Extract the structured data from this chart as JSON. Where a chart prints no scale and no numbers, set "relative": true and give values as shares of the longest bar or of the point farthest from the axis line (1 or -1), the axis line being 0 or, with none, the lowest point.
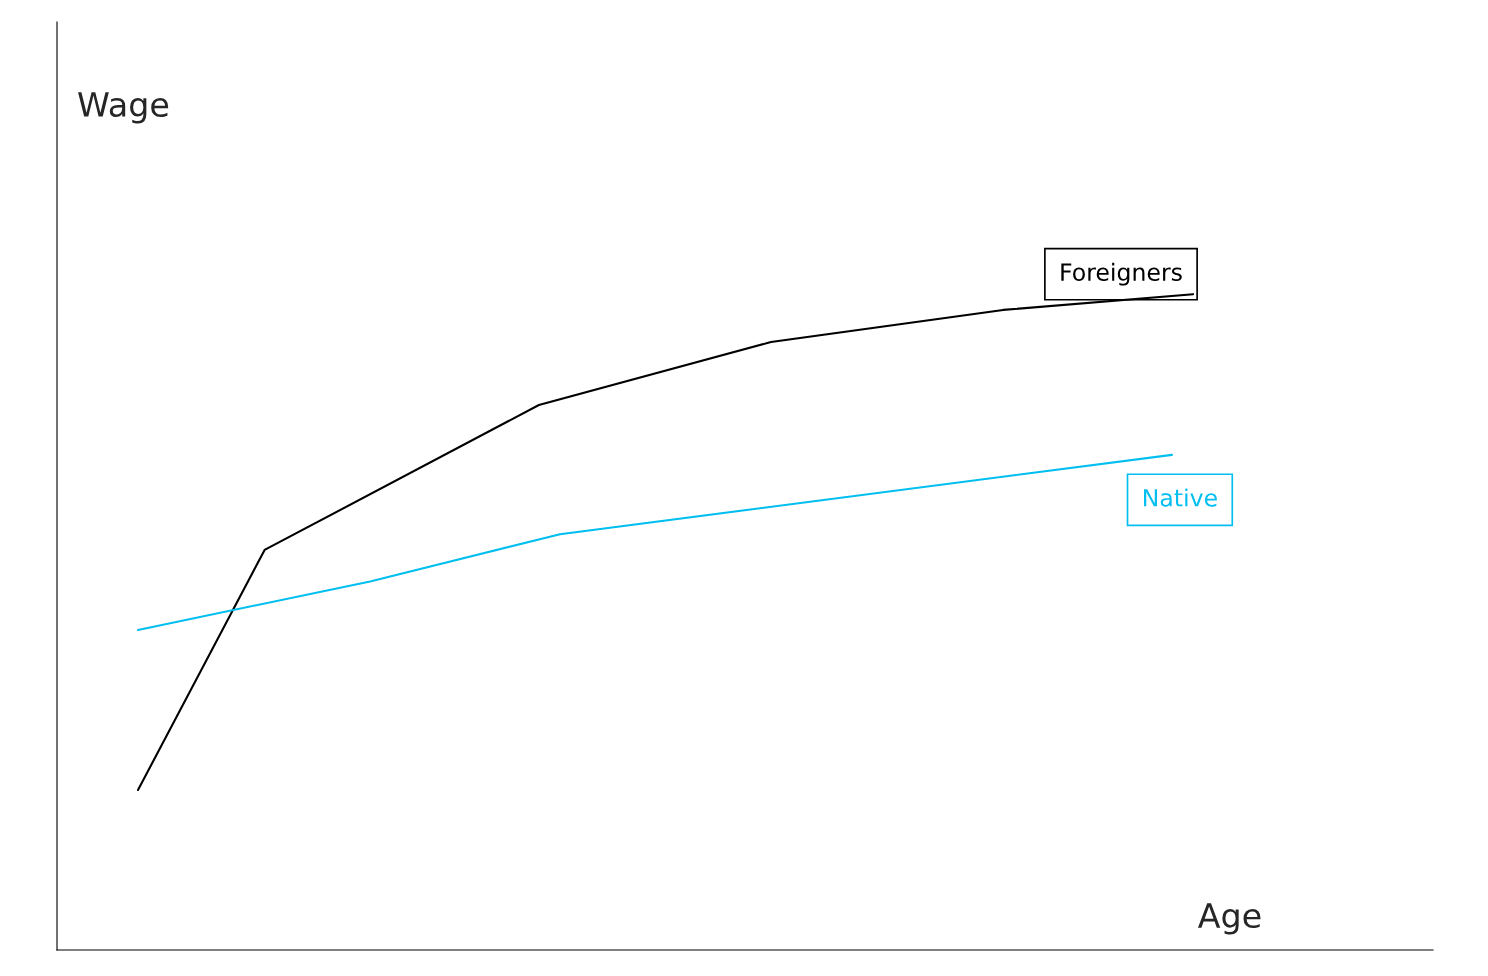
{
  "chart_data": {
    "type": "line",
    "relative": true,
    "xlabel": "Age",
    "annotations": [
      "Wage"
    ],
    "grid": false,
    "legend": false,
    "marker": "none",
    "line_style": "solid",
    "categories": [
      null,
      null,
      null,
      null,
      null,
      null,
      null,
      null,
      null,
      null,
      null,
      null,
      null,
      null,
      null,
      null,
      null,
      null,
      null,
      null,
      null,
      null,
      null,
      null,
      null,
      null,
      null,
      null,
      null,
      null,
      null,
      null,
      null,
      null,
      null,
      null,
      null,
      null,
      null,
      null,
      null,
      null,
      null,
      null,
      null,
      null,
      null,
      null,
      null,
      null,
      null
    ],
    "series": [
      {
        "name": "Foreigners",
        "color": "#000000",
        "values": [
          0.244,
          null,
          null,
          null,
          null,
          null,
          0.61,
          null,
          null,
          null,
          null,
          null,
          null,
          null,
          null,
          null,
          null,
          null,
          null,
          0.831,
          null,
          null,
          null,
          null,
          null,
          null,
          null,
          null,
          null,
          null,
          0.927,
          null,
          null,
          null,
          null,
          null,
          null,
          null,
          null,
          null,
          null,
          0.976,
          null,
          null,
          null,
          null,
          null,
          null,
          null,
          null,
          1.0
        ]
      },
      {
        "name": "Native",
        "color": "#00bff0",
        "values": [
          0.488,
          null,
          null,
          null,
          null,
          null,
          null,
          null,
          null,
          null,
          null,
          0.562,
          null,
          null,
          null,
          null,
          null,
          null,
          null,
          null,
          0.634,
          null,
          null,
          null,
          null,
          null,
          null,
          null,
          null,
          null,
          null,
          null,
          null,
          null,
          null,
          null,
          null,
          null,
          null,
          null,
          null,
          null,
          null,
          null,
          null,
          null,
          null,
          null,
          null,
          0.755,
          null
        ]
      }
    ]
  }
}
